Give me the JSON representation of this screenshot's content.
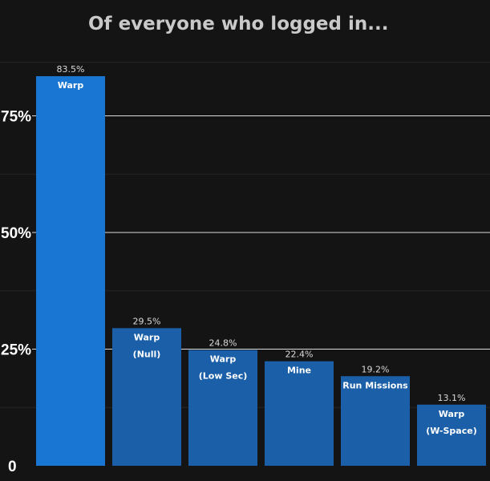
{
  "chart_data": {
    "type": "bar",
    "title": "Of everyone who logged in...",
    "xlabel": "",
    "ylabel": "",
    "ylim": [
      0,
      87
    ],
    "yticks": [
      {
        "value": 0,
        "label": "0"
      },
      {
        "value": 25,
        "label": "25%"
      },
      {
        "value": 50,
        "label": "50%"
      },
      {
        "value": 75,
        "label": "75%"
      }
    ],
    "grid": true,
    "categories": [
      [
        "Warp"
      ],
      [
        "Warp",
        "(Null)"
      ],
      [
        "Warp",
        "(Low Sec)"
      ],
      [
        "Mine"
      ],
      [
        "Run Missions"
      ],
      [
        "Warp",
        "(W-Space)"
      ]
    ],
    "values": [
      83.5,
      29.5,
      24.8,
      22.4,
      19.2,
      13.1
    ],
    "value_labels": [
      "83.5%",
      "29.5%",
      "24.8%",
      "22.4%",
      "19.2%",
      "13.1%"
    ],
    "colors": {
      "background": "#141414",
      "highlight_bar": "#1976d2",
      "bar": "#1a5fa8",
      "grid": "#ffffff",
      "minor_grid": "#262626"
    }
  }
}
